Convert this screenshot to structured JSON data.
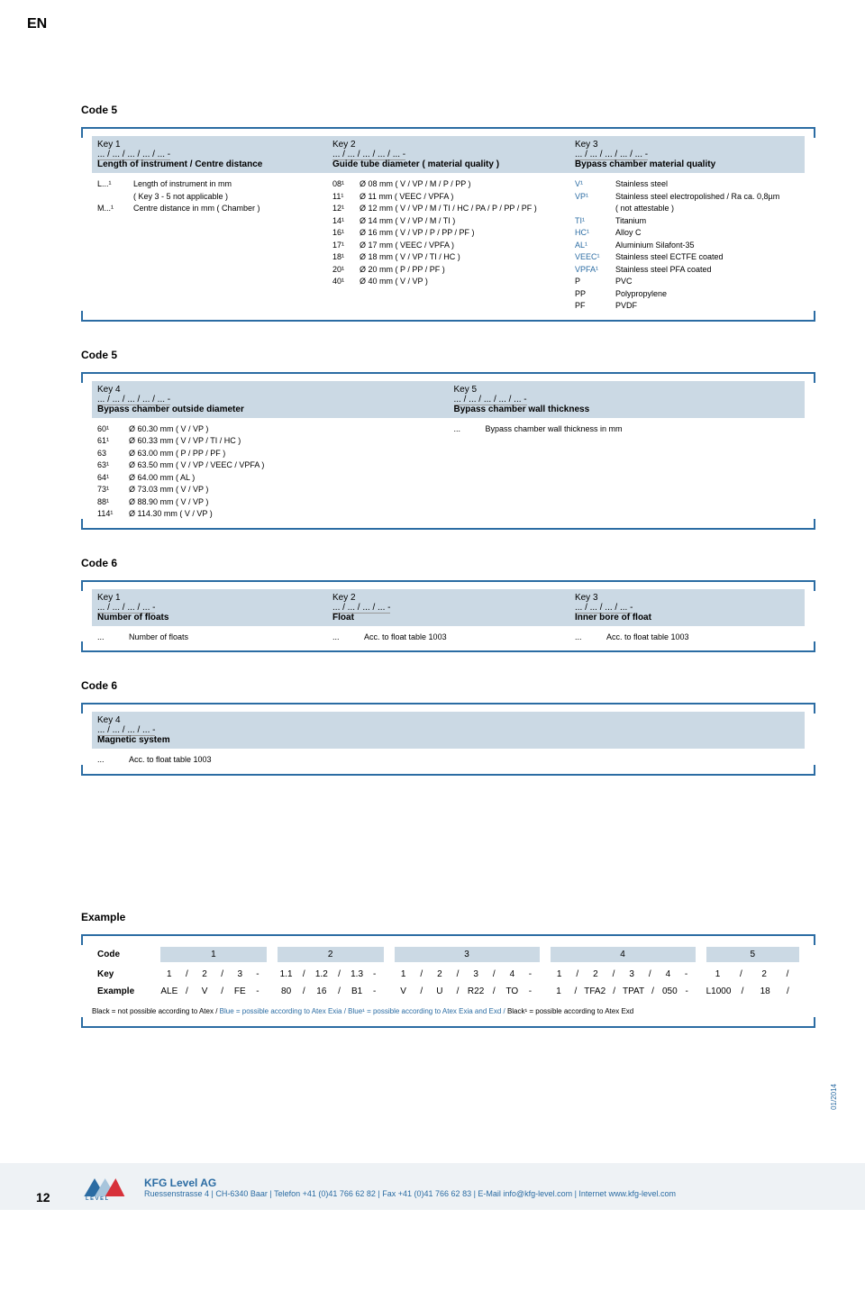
{
  "lang": "EN",
  "page_number": "12",
  "date": "01/2014",
  "colors": {
    "accent": "#2b6ca3",
    "band": "#cbd9e4",
    "footer_bg": "#eef2f5"
  },
  "code5a": {
    "title": "Code 5",
    "headers": [
      {
        "key": "Key 1",
        "path": "... / ... / ... / ... / ... -",
        "title": "Length of instrument / Centre distance"
      },
      {
        "key": "Key 2",
        "path": "... / ... / ... / ... / ... -",
        "title": "Guide tube diameter ( material quality )"
      },
      {
        "key": "Key 3",
        "path": "... / ... / ... / ... / ... -",
        "title": "Bypass chamber material quality"
      }
    ],
    "col1": [
      {
        "code": "L...¹",
        "txt": "Length of instrument in mm"
      },
      {
        "code": "",
        "txt": "( Key 3 - 5 not applicable )"
      },
      {
        "code": "M...¹",
        "txt": "Centre distance in mm ( Chamber )"
      }
    ],
    "col2": [
      {
        "code": "08¹",
        "txt": "Ø 08 mm ( V / VP / M / P / PP )"
      },
      {
        "code": "11¹",
        "txt": "Ø 11 mm ( VEEC / VPFA )"
      },
      {
        "code": "12¹",
        "txt": "Ø 12 mm ( V / VP / M / TI / HC / PA / P / PP / PF )"
      },
      {
        "code": "14¹",
        "txt": "Ø 14 mm ( V / VP / M / TI )"
      },
      {
        "code": "16¹",
        "txt": "Ø 16 mm ( V / VP / P / PP / PF )"
      },
      {
        "code": "17¹",
        "txt": "Ø 17 mm ( VEEC / VPFA )"
      },
      {
        "code": "18¹",
        "txt": "Ø 18 mm ( V / VP / TI / HC )"
      },
      {
        "code": "20¹",
        "txt": "Ø 20 mm ( P / PP / PF )"
      },
      {
        "code": "40¹",
        "txt": "Ø 40 mm ( V / VP )"
      }
    ],
    "col3": [
      {
        "code": "V¹",
        "txt": "Stainless steel",
        "blue": true
      },
      {
        "code": "VP¹",
        "txt": "Stainless steel electropolished / Ra ca. 0,8µm",
        "blue": true
      },
      {
        "code": "",
        "txt": "( not attestable )"
      },
      {
        "code": "TI¹",
        "txt": "Titanium",
        "blue": true
      },
      {
        "code": "HC¹",
        "txt": "Alloy C",
        "blue": true
      },
      {
        "code": "AL¹",
        "txt": "Aluminium Silafont-35",
        "blue": true
      },
      {
        "code": "VEEC¹",
        "txt": "Stainless steel ECTFE coated",
        "blue": true
      },
      {
        "code": "VPFA¹",
        "txt": "Stainless steel PFA coated",
        "blue": true
      },
      {
        "code": "P",
        "txt": "PVC"
      },
      {
        "code": "PP",
        "txt": "Polypropylene"
      },
      {
        "code": "PF",
        "txt": "PVDF"
      }
    ]
  },
  "code5b": {
    "title": "Code 5",
    "headers": [
      {
        "key": "Key 4",
        "path": "... / ... / ... / ... / ... -",
        "title": "Bypass chamber outside diameter"
      },
      {
        "key": "Key 5",
        "path": "... / ...  / ...  / ... / ... -",
        "title": "Bypass chamber wall thickness"
      }
    ],
    "col1": [
      {
        "code": "60¹",
        "txt": "Ø 60.30 mm ( V / VP )"
      },
      {
        "code": "61¹",
        "txt": "Ø 60.33 mm ( V / VP / TI / HC )"
      },
      {
        "code": "63",
        "txt": "Ø 63.00 mm ( P / PP / PF )"
      },
      {
        "code": "63¹",
        "txt": "Ø 63.50 mm ( V / VP / VEEC / VPFA )"
      },
      {
        "code": "64¹",
        "txt": "Ø 64.00 mm ( AL )"
      },
      {
        "code": "73¹",
        "txt": "Ø 73.03 mm ( V / VP )"
      },
      {
        "code": "88¹",
        "txt": "Ø 88.90 mm ( V / VP )"
      },
      {
        "code": "114¹",
        "txt": "Ø 114.30 mm ( V / VP )"
      }
    ],
    "col2": [
      {
        "code": "...",
        "txt": "Bypass chamber wall thickness in mm"
      }
    ]
  },
  "code6a": {
    "title": "Code 6",
    "headers": [
      {
        "key": "Key 1",
        "path": "... / ... / ... / ... -",
        "title": "Number of floats"
      },
      {
        "key": "Key 2",
        "path": "... / ... / ... / ... -",
        "title": "Float"
      },
      {
        "key": "Key 3",
        "path": "... / ... / ... / ... -",
        "title": "Inner bore of float"
      }
    ],
    "row": [
      {
        "code": "...",
        "txt": "Number of floats"
      },
      {
        "code": "...",
        "txt": "Acc. to float table 1003"
      },
      {
        "code": "...",
        "txt": "Acc. to float table 1003"
      }
    ]
  },
  "code6b": {
    "title": "Code 6",
    "headers": [
      {
        "key": "Key 4",
        "path": "... / ... / ... / ... -",
        "title": "Magnetic system"
      }
    ],
    "row": [
      {
        "code": "...",
        "txt": "Acc. to float table 1003"
      }
    ]
  },
  "example": {
    "title": "Example",
    "row_code": {
      "label": "Code",
      "cells": [
        "1",
        "2",
        "3",
        "4",
        "5"
      ]
    },
    "row_key": {
      "label": "Key",
      "cells": [
        [
          "1",
          "/",
          "2",
          "/",
          "3",
          "-"
        ],
        [
          "1.1",
          "/",
          "1.2",
          "/",
          "1.3",
          "-"
        ],
        [
          "1",
          "/",
          "2",
          "/",
          "3",
          "/",
          "4",
          "-"
        ],
        [
          "1",
          "/",
          "2",
          "/",
          "3",
          "/",
          "4",
          "-"
        ],
        [
          "1",
          "/",
          "2",
          "/"
        ]
      ]
    },
    "row_ex": {
      "label": "Example",
      "cells": [
        [
          "ALE",
          "/",
          "V",
          "/",
          "FE",
          "-"
        ],
        [
          "80",
          "/",
          "16",
          "/",
          "B1",
          "-"
        ],
        [
          "V",
          "/",
          "U",
          "/",
          "R22",
          "/",
          "TO",
          "-"
        ],
        [
          "1",
          "/",
          "TFA2",
          "/",
          "TPAT",
          "/",
          "050",
          "-"
        ],
        [
          "L1000",
          "/",
          "18",
          "/"
        ]
      ]
    },
    "legend": {
      "p1": "Black = not possible according to Atex / ",
      "p2": "Blue = possible according to Atex Exia / Blue¹ = possible according to Atex Exia and Exd / ",
      "p3": "Black¹ = possible according to Atex Exd"
    }
  },
  "footer": {
    "company": "KFG Level AG",
    "line": "Ruessenstrasse 4 | CH-6340 Baar | Telefon +41 (0)41 766 62 82 | Fax +41 (0)41 766 62 83 | E-Mail info@kfg-level.com | Internet www.kfg-level.com"
  }
}
